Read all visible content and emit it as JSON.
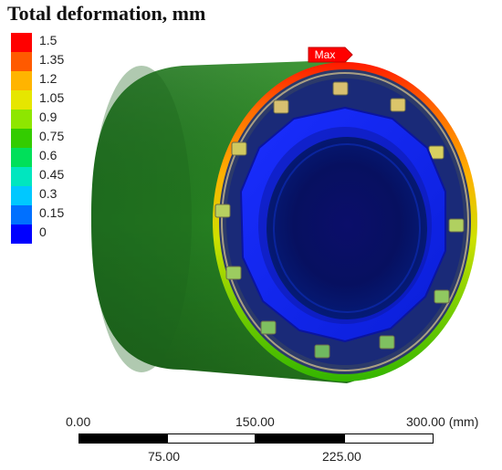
{
  "title": "Total deformation, mm",
  "legend": {
    "entries": [
      {
        "label": "1.5",
        "color": "#ff0000"
      },
      {
        "label": "1.35",
        "color": "#ff5a00"
      },
      {
        "label": "1.2",
        "color": "#ffb400"
      },
      {
        "label": "1.05",
        "color": "#e6e600"
      },
      {
        "label": "0.9",
        "color": "#8ee600"
      },
      {
        "label": "0.75",
        "color": "#33cc00"
      },
      {
        "label": "0.6",
        "color": "#00e05a"
      },
      {
        "label": "0.45",
        "color": "#00e6bf"
      },
      {
        "label": "0.3",
        "color": "#00c8ff"
      },
      {
        "label": "0.15",
        "color": "#0070ff"
      },
      {
        "label": "0",
        "color": "#0000ff"
      }
    ]
  },
  "model": {
    "max_label": "Max",
    "max_color": "#ff0000"
  },
  "scale_bar": {
    "top_labels": [
      "0.00",
      "150.00",
      "300.00 (mm)"
    ],
    "bottom_labels": [
      "75.00",
      "225.00"
    ]
  }
}
